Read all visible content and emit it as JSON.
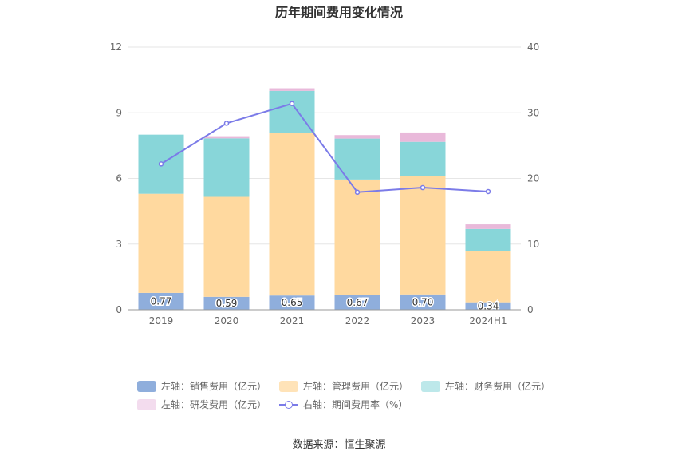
{
  "chart_data": {
    "type": "bar",
    "stacked": true,
    "title": "历年期间费用变化情况",
    "categories": [
      "2019",
      "2020",
      "2021",
      "2022",
      "2023",
      "2024H1"
    ],
    "left_axis": {
      "min": 0,
      "max": 12,
      "ticks": [
        "0",
        "3",
        "6",
        "9",
        "12"
      ]
    },
    "right_axis": {
      "min": 0,
      "max": 40,
      "ticks": [
        "0",
        "10",
        "20",
        "30",
        "40"
      ]
    },
    "series": [
      {
        "name": "左轴：销售费用（亿元）",
        "axis": "left",
        "color": "#8faedc",
        "values": [
          0.77,
          0.59,
          0.65,
          0.67,
          0.7,
          0.34
        ],
        "labels": [
          "0.77",
          "0.59",
          "0.65",
          "0.67",
          "0.70",
          "0.34"
        ]
      },
      {
        "name": "左轴：管理费用（亿元）",
        "axis": "left",
        "color": "#ffd99f",
        "values": [
          4.53,
          4.57,
          7.43,
          5.28,
          5.42,
          2.33
        ]
      },
      {
        "name": "左轴：财务费用（亿元）",
        "axis": "left",
        "color": "#88d6d9",
        "values": [
          2.7,
          2.67,
          1.92,
          1.87,
          1.55,
          1.02
        ]
      },
      {
        "name": "左轴：研发费用（亿元）",
        "axis": "left",
        "color": "#e9b9da",
        "values": [
          0.0,
          0.1,
          0.12,
          0.16,
          0.43,
          0.21
        ]
      }
    ],
    "line": {
      "name": "右轴：期间费用率（%）",
      "axis": "right",
      "color": "#7b7be8",
      "values": [
        22.2,
        28.4,
        31.4,
        17.9,
        18.6,
        18.0
      ]
    },
    "legend_position": "bottom",
    "source": "数据来源：恒生聚源"
  }
}
